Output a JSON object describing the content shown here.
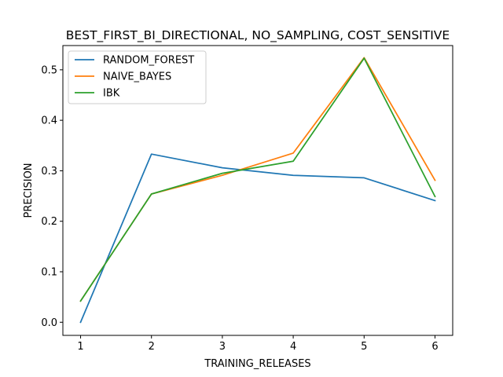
{
  "chart_data": {
    "type": "line",
    "title": "BEST_FIRST_BI_DIRECTIONAL, NO_SAMPLING, COST_SENSITIVE",
    "xlabel": "TRAINING_RELEASES",
    "ylabel": "PRECISION",
    "x": [
      1,
      2,
      3,
      4,
      5,
      6
    ],
    "xlim": [
      0.75,
      6.25
    ],
    "ylim": [
      -0.026,
      0.548
    ],
    "xticks": [
      1,
      2,
      3,
      4,
      5,
      6
    ],
    "yticks": [
      0.0,
      0.1,
      0.2,
      0.3,
      0.4,
      0.5
    ],
    "ytick_labels": [
      "0.0",
      "0.1",
      "0.2",
      "0.3",
      "0.4",
      "0.5"
    ],
    "grid": false,
    "legend_position": "top-left",
    "series": [
      {
        "name": "RANDOM_FOREST",
        "color": "#1f77b4",
        "values": [
          0.0,
          0.333,
          0.306,
          0.291,
          0.286,
          0.241
        ]
      },
      {
        "name": "NAIVE_BAYES",
        "color": "#ff7f0e",
        "values": [
          0.042,
          0.254,
          0.291,
          0.335,
          0.524,
          0.281
        ]
      },
      {
        "name": "IBK",
        "color": "#2ca02c",
        "values": [
          0.042,
          0.254,
          0.295,
          0.319,
          0.523,
          0.249
        ]
      }
    ]
  }
}
